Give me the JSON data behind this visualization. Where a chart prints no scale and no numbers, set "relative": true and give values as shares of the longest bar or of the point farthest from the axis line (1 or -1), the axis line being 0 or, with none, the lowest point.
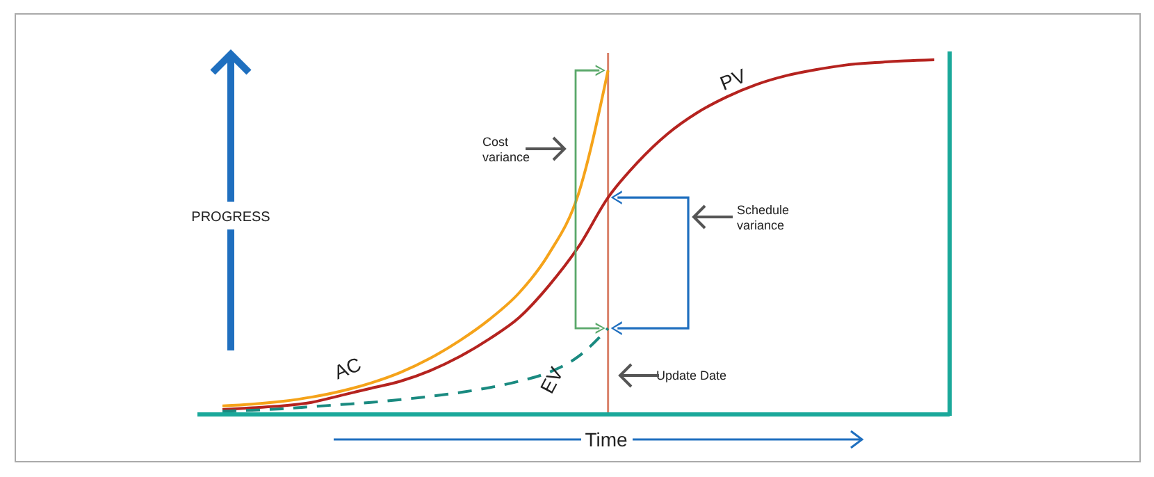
{
  "chart_data": {
    "type": "line",
    "relative": true,
    "categories": [
      null,
      null,
      null,
      null,
      null,
      null,
      null,
      null,
      null,
      null,
      null,
      null,
      null,
      null,
      null,
      null,
      null,
      null,
      null,
      null,
      null,
      null,
      null,
      null,
      null
    ],
    "series": [
      {
        "name": "PV",
        "color": "#b5231f",
        "values": [
          0.01,
          0.015,
          0.02,
          0.03,
          0.05,
          0.07,
          0.09,
          0.12,
          0.16,
          0.21,
          0.27,
          0.36,
          0.47,
          0.61,
          0.71,
          0.79,
          0.85,
          0.895,
          0.93,
          0.955,
          0.972,
          0.985,
          0.992,
          0.997,
          1
        ]
      },
      {
        "name": "AC",
        "color": "#f5a31a",
        "values": [
          0.02,
          0.025,
          0.033,
          0.045,
          0.062,
          0.085,
          0.115,
          0.155,
          0.205,
          0.265,
          0.34,
          0.45,
          0.62,
          0.97,
          null,
          null,
          null,
          null,
          null,
          null,
          null,
          null,
          null,
          null,
          null
        ]
      },
      {
        "name": "EV",
        "color": "#1a8a80",
        "line_style": "dashed",
        "values": [
          0.005,
          0.008,
          0.012,
          0.018,
          0.024,
          0.03,
          0.038,
          0.047,
          0.058,
          0.072,
          0.09,
          0.115,
          0.16,
          0.24,
          null,
          null,
          null,
          null,
          null,
          null,
          null,
          null,
          null,
          null,
          null
        ]
      }
    ],
    "ylabel": "PROGRESS",
    "xlabel": "Time",
    "annotations": [
      "Cost variance",
      "Schedule variance",
      "Update Date"
    ]
  }
}
